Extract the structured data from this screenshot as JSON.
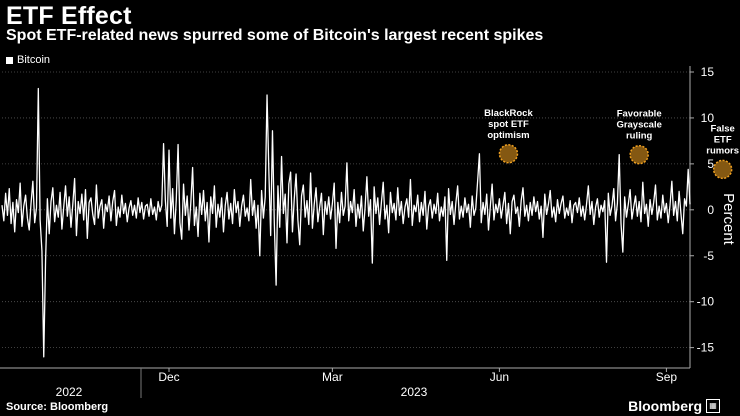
{
  "header": {
    "title": "ETF Effect",
    "subtitle": "Spot ETF-related news spurred some of Bitcoin's largest recent spikes"
  },
  "legend": {
    "label": "Bitcoin",
    "swatch_color": "#ffffff"
  },
  "footer": {
    "source": "Source: Bloomberg",
    "brand": "Bloomberg"
  },
  "colors": {
    "background": "#000000",
    "line": "#ffffff",
    "grid": "#555555",
    "marker": "#f0a020",
    "marker_stroke": "#ffffff"
  },
  "chart_data": {
    "type": "line",
    "ylabel": "Percent",
    "ylim": [
      -17,
      15
    ],
    "y_ticks": [
      15,
      10,
      5,
      0,
      -5,
      -10,
      -15
    ],
    "grid": true,
    "x_month_labels": [
      {
        "label": "Dec",
        "day": 92
      },
      {
        "label": "Mar",
        "day": 182
      },
      {
        "label": "Jun",
        "day": 274
      },
      {
        "label": "Sep",
        "day": 366
      }
    ],
    "x_year_labels": [
      {
        "label": "2022",
        "day": 30
      },
      {
        "label": "2023",
        "day": 245
      }
    ],
    "annotations": [
      {
        "lines": [
          "BlackRock",
          "spot ETF",
          "optimism"
        ],
        "day": 279,
        "value": 6.1
      },
      {
        "lines": [
          "Favorable",
          "Grayscale",
          "ruling"
        ],
        "day": 351,
        "value": 6.0
      },
      {
        "lines": [
          "False",
          "ETF",
          "rumors"
        ],
        "day": 397,
        "value": 4.4
      }
    ],
    "series": [
      {
        "name": "Bitcoin",
        "values": [
          0.5,
          -1.2,
          1.8,
          -0.6,
          2.3,
          -1.5,
          0.8,
          -2.4,
          1.1,
          -0.3,
          2.9,
          -1.8,
          0.4,
          1.6,
          -0.9,
          -2.2,
          0.7,
          3.1,
          -1.4,
          0.2,
          13.2,
          -1.1,
          -4.5,
          -16.0,
          -5.5,
          1.2,
          -2.6,
          0.9,
          2.4,
          -1.3,
          0.5,
          -0.8,
          1.9,
          -2.1,
          0.3,
          2.6,
          -0.7,
          1.4,
          -1.9,
          0.6,
          3.4,
          -2.8,
          0.9,
          -0.4,
          1.7,
          -1.1,
          2.2,
          -3.1,
          0.8,
          1.3,
          -0.5,
          -1.6,
          2.7,
          -0.9,
          0.4,
          1.1,
          -2.0,
          0.6,
          -0.2,
          1.5,
          -1.2,
          0.9,
          2.1,
          -1.7,
          0.3,
          -0.8,
          1.6,
          -0.4,
          0.7,
          -1.3,
          0.2,
          1.0,
          -0.6,
          0.5,
          -0.9,
          1.3,
          -0.3,
          0.8,
          -1.0,
          0.4,
          0.6,
          -0.7,
          1.2,
          -0.5,
          0.3,
          -1.1,
          0.9,
          -0.2,
          0.5,
          7.2,
          1.0,
          -1.8,
          6.5,
          -0.9,
          2.3,
          -2.6,
          1.1,
          7.1,
          -1.4,
          -3.2,
          2.8,
          -0.6,
          1.5,
          -2.2,
          0.7,
          4.6,
          -1.7,
          0.3,
          -2.9,
          1.8,
          -0.5,
          2.1,
          -1.2,
          0.8,
          -3.5,
          1.4,
          -0.4,
          2.6,
          -1.9,
          0.6,
          -0.8,
          1.3,
          -2.4,
          0.5,
          1.9,
          -1.0,
          0.7,
          -1.5,
          2.2,
          -0.3,
          0.9,
          -1.8,
          0.4,
          1.6,
          -0.7,
          0.2,
          -1.2,
          3.3,
          -0.6,
          1.0,
          -2.0,
          0.5,
          -5.0,
          2.1,
          -0.9,
          1.4,
          12.5,
          4.2,
          -2.8,
          8.6,
          -1.4,
          -8.2,
          2.6,
          -1.9,
          5.8,
          -0.4,
          1.7,
          -3.6,
          2.8,
          4.1,
          -2.4,
          1.2,
          3.9,
          -1.1,
          -3.8,
          1.5,
          2.7,
          -0.8,
          1.0,
          -1.6,
          4.0,
          -2.0,
          0.6,
          2.4,
          -1.3,
          0.3,
          1.8,
          -2.7,
          0.9,
          -0.5,
          1.4,
          -1.0,
          0.7,
          2.9,
          -4.2,
          0.8,
          -1.4,
          1.9,
          -0.6,
          0.4,
          5.1,
          -1.2,
          0.9,
          -0.3,
          2.2,
          -1.8,
          0.6,
          -0.9,
          1.5,
          -2.3,
          0.2,
          3.6,
          -0.7,
          1.1,
          -5.8,
          2.5,
          -0.4,
          1.3,
          -1.6,
          0.8,
          3.0,
          -1.0,
          0.5,
          -2.5,
          1.9,
          -0.3,
          0.7,
          -1.1,
          2.4,
          -0.6,
          0.9,
          -1.5,
          0.3,
          1.2,
          -0.8,
          3.3,
          -1.7,
          0.5,
          -0.2,
          1.6,
          -1.3,
          0.8,
          -0.6,
          2.0,
          -2.1,
          0.4,
          1.1,
          -0.9,
          0.6,
          -0.4,
          1.8,
          -1.2,
          0.3,
          -0.7,
          1.4,
          -5.5,
          2.3,
          -0.5,
          0.9,
          -1.6,
          0.7,
          2.6,
          -1.0,
          0.4,
          -0.8,
          1.3,
          -0.3,
          0.6,
          -1.9,
          1.5,
          -0.6,
          0.2,
          3.1,
          6.1,
          -1.4,
          0.8,
          -0.5,
          1.7,
          -2.2,
          0.4,
          2.8,
          -1.1,
          0.6,
          -0.3,
          1.2,
          -0.9,
          0.5,
          1.9,
          -1.5,
          0.7,
          -2.6,
          0.9,
          1.6,
          -0.4,
          0.3,
          -1.8,
          1.0,
          2.4,
          -0.7,
          0.5,
          -1.2,
          0.8,
          -0.6,
          1.4,
          -0.2,
          0.9,
          -1.0,
          0.4,
          -3.0,
          1.7,
          -0.5,
          0.6,
          2.1,
          -0.8,
          0.3,
          -1.3,
          1.1,
          -0.4,
          0.7,
          1.5,
          -0.9,
          0.2,
          -0.6,
          1.0,
          -1.4,
          0.5,
          0.8,
          -0.3,
          1.3,
          -0.7,
          0.4,
          -1.1,
          0.6,
          2.6,
          -0.5,
          0.9,
          -1.6,
          0.3,
          1.2,
          -0.8,
          0.5,
          -0.2,
          1.0,
          -5.7,
          1.8,
          -0.6,
          0.4,
          2.3,
          -1.2,
          0.7,
          6.0,
          -1.5,
          -4.6,
          1.4,
          -0.8,
          0.6,
          2.2,
          -1.0,
          0.3,
          1.5,
          -0.7,
          0.9,
          -1.3,
          3.0,
          -0.4,
          0.6,
          -1.8,
          1.1,
          -0.5,
          0.8,
          2.7,
          -1.1,
          0.4,
          -0.9,
          1.6,
          -0.3,
          0.7,
          -1.4,
          0.5,
          3.1,
          -0.6,
          0.9,
          -1.2,
          2.0,
          -0.4,
          -2.6,
          1.2,
          0.4,
          4.4,
          0.6
        ]
      }
    ]
  }
}
